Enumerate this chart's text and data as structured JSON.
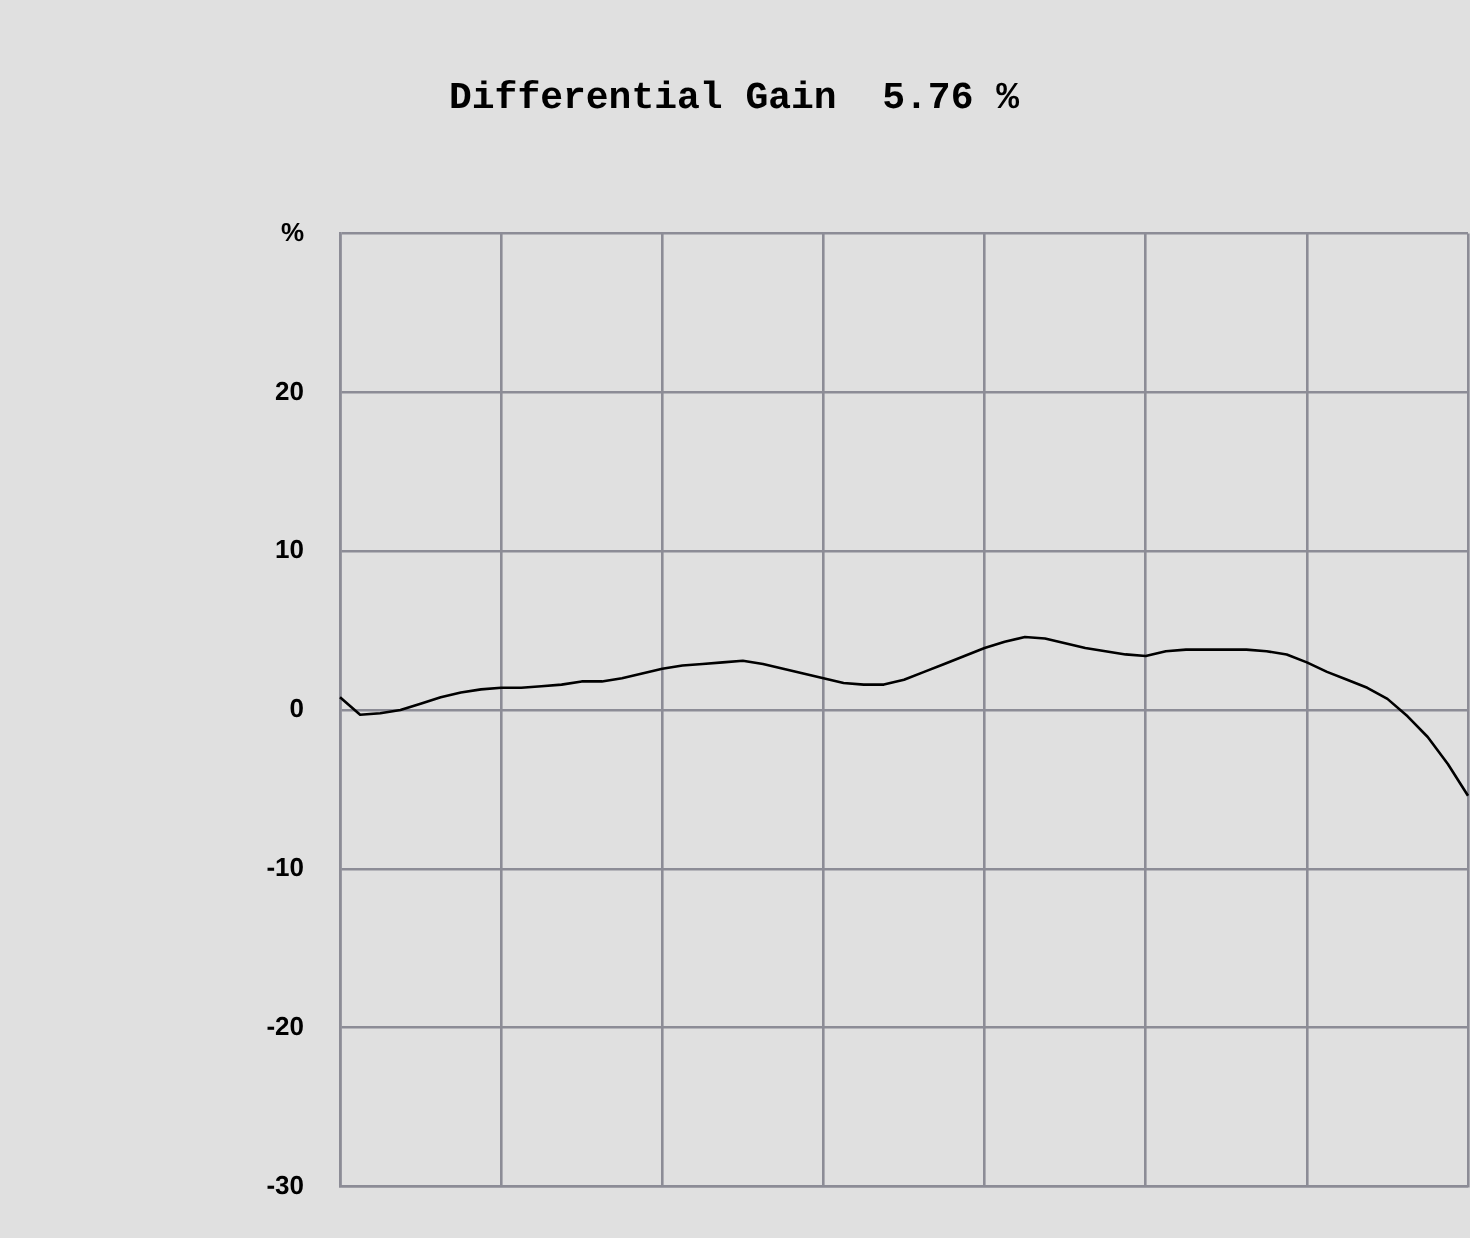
{
  "chart_data": {
    "type": "line",
    "title": "Differential Gain  5.76 %",
    "categories": [
      null,
      null,
      null,
      null,
      null,
      null,
      null,
      null,
      null,
      null,
      null,
      null,
      null,
      null,
      null,
      null,
      null,
      null,
      null,
      null,
      null,
      null,
      null,
      null,
      null,
      null,
      null,
      null,
      null,
      null,
      null,
      null,
      null,
      null,
      null,
      null,
      null,
      null,
      null,
      null,
      null,
      null,
      null,
      null,
      null,
      null,
      null,
      null,
      null,
      null,
      null,
      null,
      null,
      null,
      null,
      null,
      null
    ],
    "series": [
      {
        "color": "#000000",
        "values": [
          0.8,
          -0.3,
          -0.2,
          0.0,
          0.4,
          0.8,
          1.1,
          1.3,
          1.4,
          1.4,
          1.5,
          1.6,
          1.8,
          1.8,
          2.0,
          2.3,
          2.6,
          2.8,
          2.9,
          3.0,
          3.1,
          2.9,
          2.6,
          2.3,
          2.0,
          1.7,
          1.6,
          1.6,
          1.9,
          2.4,
          2.9,
          3.4,
          3.9,
          4.3,
          4.6,
          4.5,
          4.2,
          3.9,
          3.7,
          3.5,
          3.4,
          3.7,
          3.8,
          3.8,
          3.8,
          3.8,
          3.7,
          3.5,
          3.0,
          2.4,
          1.9,
          1.4,
          0.7,
          -0.4,
          -1.7,
          -3.4,
          -5.4
        ]
      }
    ],
    "ylim": [
      -30,
      30
    ],
    "yticks": [
      {
        "value": 30,
        "label": "%"
      },
      20,
      10,
      0,
      -10,
      -20,
      -30
    ],
    "grid": true,
    "tick_labels": "y",
    "marker": "none",
    "line_style": "solid",
    "legend": false
  }
}
